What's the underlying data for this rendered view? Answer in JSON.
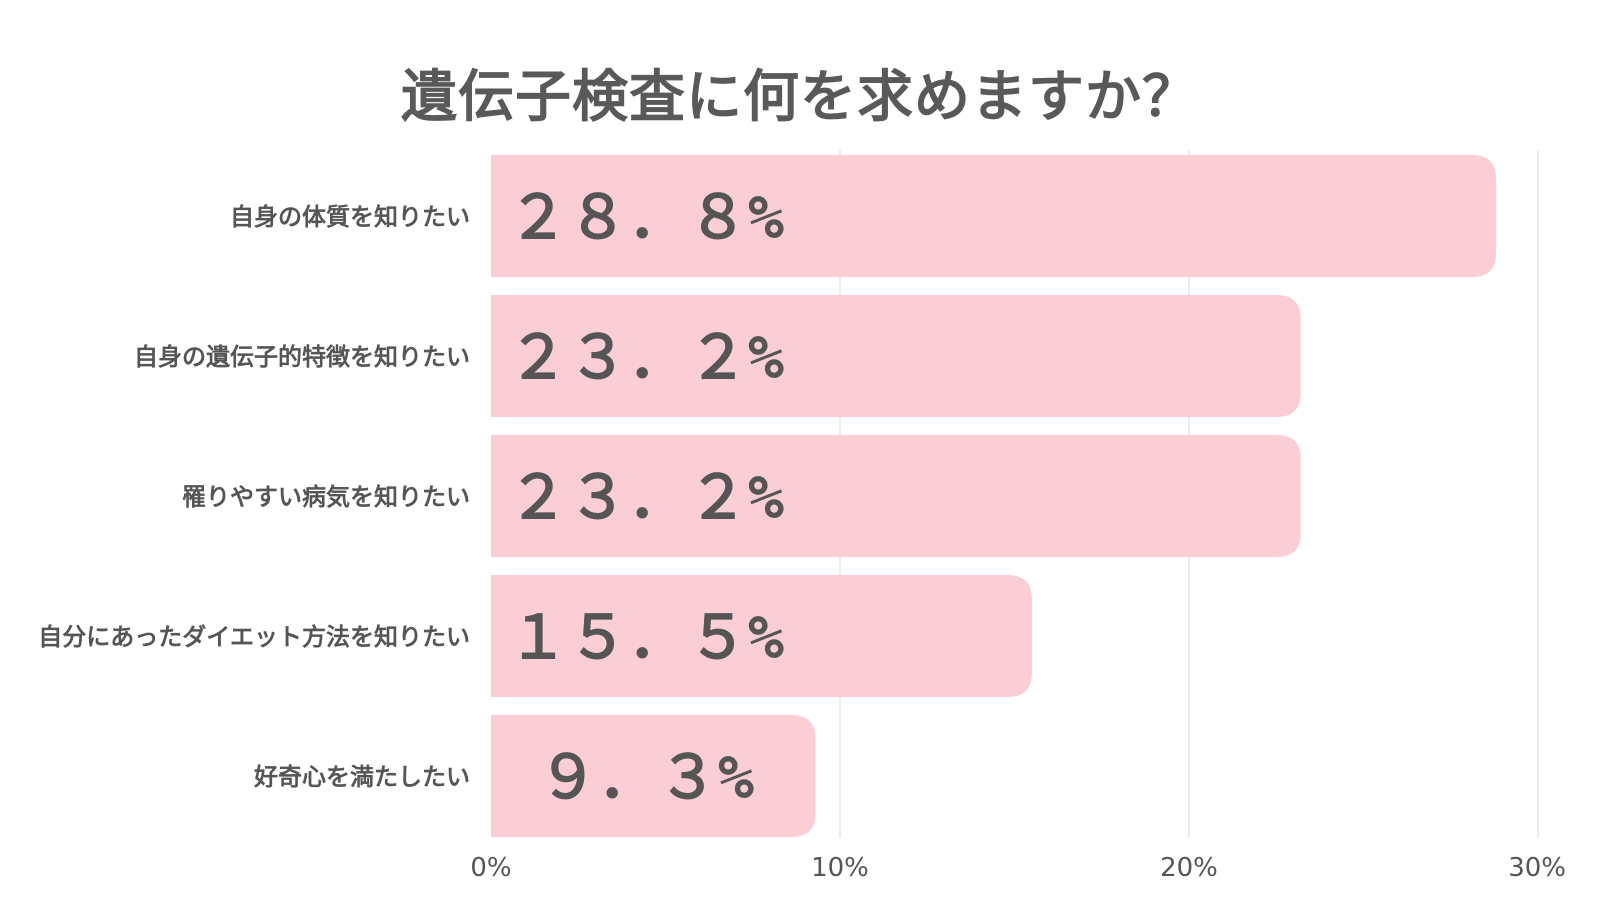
{
  "chart_data": {
    "type": "bar",
    "orientation": "horizontal",
    "title": "遺伝子検査に何を求めますか？",
    "categories": [
      "自身の体質を知りたい",
      "自身の遺伝子的特徴を知りたい",
      "罹りやすい病気を知りたい",
      "自分にあったダイエット方法を知りたい",
      "好奇心を満たしたい"
    ],
    "values": [
      28.8,
      23.2,
      23.2,
      15.5,
      9.3
    ],
    "value_labels": [
      "２８．８%",
      "２３．２%",
      "２３．２%",
      "１５．５%",
      "９．３%"
    ],
    "xlim": [
      0,
      30
    ],
    "x_ticks": [
      0,
      10,
      20,
      30
    ],
    "x_tick_labels": [
      "0%",
      "10%",
      "20%",
      "30%"
    ],
    "xlabel": "",
    "ylabel": "",
    "grid": true,
    "colors": {
      "bar": "#fbcdd5",
      "text": "#555555",
      "grid": "#e6e6e6"
    }
  }
}
